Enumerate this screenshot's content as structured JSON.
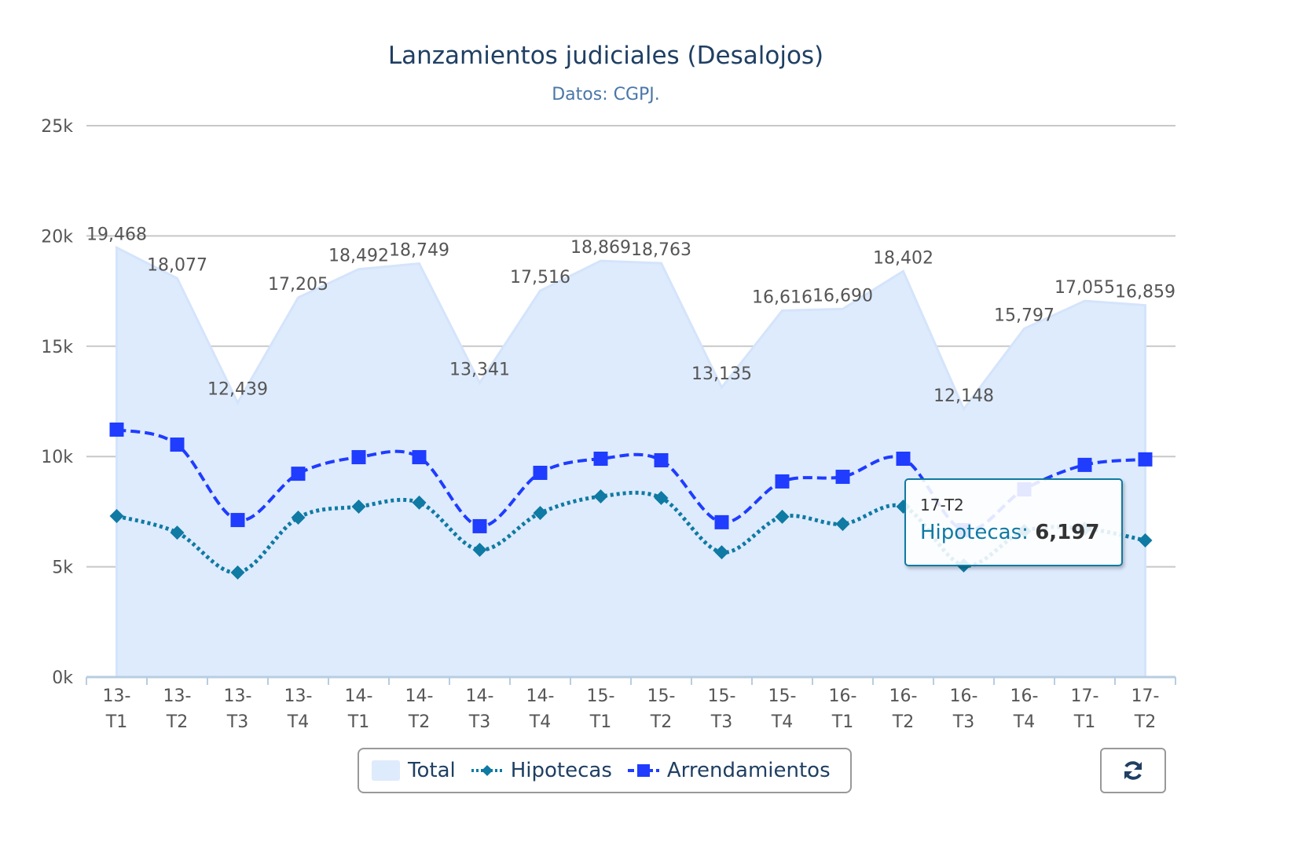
{
  "chart_data": {
    "type": "line",
    "title": "Lanzamientos judiciales (Desalojos)",
    "subtitle": "Datos: CGPJ.",
    "xlabel": "",
    "ylabel": "",
    "ylim": [
      0,
      25000
    ],
    "yticks": [
      "0k",
      "5k",
      "10k",
      "15k",
      "20k",
      "25k"
    ],
    "grid": true,
    "legend_position": "bottom",
    "categories": [
      "13-T1",
      "13-T2",
      "13-T3",
      "13-T4",
      "14-T1",
      "14-T2",
      "14-T3",
      "14-T4",
      "15-T1",
      "15-T2",
      "15-T3",
      "15-T4",
      "16-T1",
      "16-T2",
      "16-T3",
      "16-T4",
      "17-T1",
      "17-T2"
    ],
    "series": [
      {
        "name": "Total",
        "type": "area",
        "color": "#deebfd",
        "values": [
          19468,
          18077,
          12439,
          17205,
          18492,
          18749,
          13341,
          17516,
          18869,
          18763,
          13135,
          16616,
          16690,
          18402,
          12148,
          15797,
          17055,
          16859
        ],
        "labels": [
          "19,468",
          "18,077",
          "12,439",
          "17,205",
          "18,492",
          "18,749",
          "13,341",
          "17,516",
          "18,869",
          "18,763",
          "13,135",
          "16,616",
          "16,690",
          "18,402",
          "12,148",
          "15,797",
          "17,055",
          "16,859"
        ]
      },
      {
        "name": "Hipotecas",
        "type": "spline-dotted",
        "color": "#0f7aa3",
        "values": [
          7300,
          6550,
          4740,
          7230,
          7730,
          7910,
          5770,
          7440,
          8190,
          8120,
          5660,
          7270,
          6940,
          7730,
          5060,
          6620,
          6730,
          6197
        ]
      },
      {
        "name": "Arrendamientos",
        "type": "spline-dashed",
        "color": "#1f3cff",
        "values": [
          11220,
          10540,
          7120,
          9220,
          9970,
          9970,
          6840,
          9260,
          9900,
          9830,
          7020,
          8870,
          9080,
          9900,
          6660,
          8510,
          9620,
          9870
        ]
      }
    ]
  },
  "tooltip": {
    "category": "17-T2",
    "series": "Hipotecas",
    "separator": ":",
    "value": "6,197"
  },
  "reset_icon": "refresh-icon"
}
